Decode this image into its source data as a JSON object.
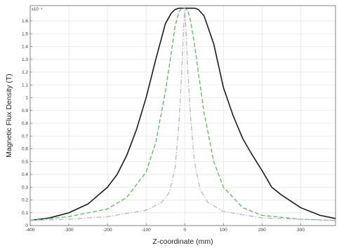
{
  "chart_data": {
    "type": "line",
    "xlabel": "Z-coordinate (mm)",
    "ylabel": "Magnetic Flux Density (T)",
    "y_exponent_label": "x10⁻⁴",
    "xlim": [
      -400,
      390
    ],
    "ylim": [
      0,
      1.72
    ],
    "x_ticks": [
      -400,
      -300,
      -200,
      -100,
      0,
      100,
      200,
      300
    ],
    "x_tick_labels": [
      "-400",
      "-300",
      "-200",
      "-100",
      "0",
      "100",
      "200",
      "300"
    ],
    "y_ticks": [
      0,
      0.1,
      0.2,
      0.3,
      0.4,
      0.5,
      0.6,
      0.7,
      0.8,
      0.9,
      1.0,
      1.1,
      1.2,
      1.3,
      1.4,
      1.5,
      1.6
    ],
    "y_tick_labels": [
      "0",
      "0.1",
      "0.2",
      "0.3",
      "0.4",
      "0.5",
      "0.6",
      "0.7",
      "0.8",
      "0.9",
      "1",
      "1.1",
      "1.2",
      "1.3",
      "1.4",
      "1.5",
      "1.6"
    ],
    "grid": true,
    "series": [
      {
        "style": "solid",
        "color": "#1a1a1a",
        "x": [
          -400,
          -350,
          -300,
          -250,
          -200,
          -175,
          -150,
          -125,
          -100,
          -75,
          -50,
          -35,
          -25,
          -15,
          0,
          15,
          25,
          35,
          50,
          75,
          100,
          125,
          150,
          175,
          200,
          225,
          250,
          300,
          350,
          390
        ],
        "y": [
          0.04,
          0.06,
          0.1,
          0.17,
          0.3,
          0.4,
          0.55,
          0.75,
          1.0,
          1.3,
          1.58,
          1.66,
          1.69,
          1.7,
          1.7,
          1.7,
          1.7,
          1.69,
          1.64,
          1.42,
          1.08,
          0.86,
          0.68,
          0.55,
          0.43,
          0.3,
          0.24,
          0.14,
          0.08,
          0.055
        ]
      },
      {
        "style": "dashed",
        "color": "#5cb85c",
        "x": [
          -400,
          -300,
          -200,
          -150,
          -100,
          -75,
          -50,
          -35,
          -25,
          -15,
          -8,
          0,
          8,
          15,
          25,
          35,
          50,
          75,
          100,
          150,
          200,
          300,
          390
        ],
        "y": [
          0.04,
          0.07,
          0.13,
          0.22,
          0.42,
          0.65,
          1.05,
          1.35,
          1.56,
          1.67,
          1.7,
          1.7,
          1.68,
          1.6,
          1.42,
          1.2,
          0.88,
          0.5,
          0.3,
          0.14,
          0.08,
          0.05,
          0.04
        ]
      },
      {
        "style": "dashdot",
        "color": "#b8b8b8",
        "x": [
          -400,
          -300,
          -200,
          -100,
          -60,
          -40,
          -25,
          -15,
          -8,
          -3,
          0,
          3,
          8,
          15,
          25,
          40,
          60,
          100,
          200,
          300,
          390
        ],
        "y": [
          0.04,
          0.05,
          0.07,
          0.12,
          0.18,
          0.26,
          0.45,
          0.8,
          1.2,
          1.55,
          1.68,
          1.55,
          1.2,
          0.85,
          0.5,
          0.28,
          0.18,
          0.11,
          0.06,
          0.05,
          0.04
        ]
      }
    ]
  }
}
